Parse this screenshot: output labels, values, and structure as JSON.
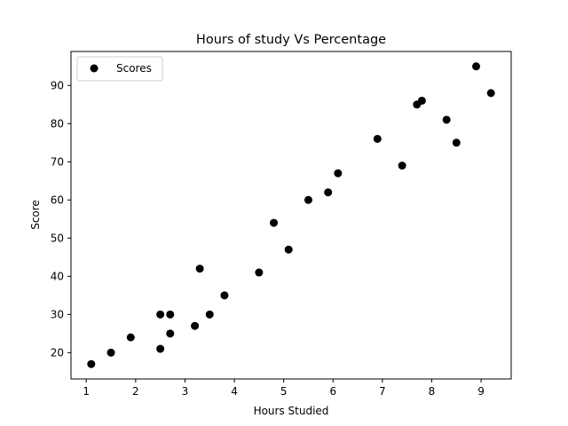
{
  "chart_data": {
    "type": "scatter",
    "title": "Hours of study Vs Percentage",
    "xlabel": "Hours Studied",
    "ylabel": "Score",
    "xlim": [
      0.69,
      9.61
    ],
    "ylim": [
      13.1,
      98.9
    ],
    "xticks": [
      1,
      2,
      3,
      4,
      5,
      6,
      7,
      8,
      9
    ],
    "yticks": [
      20,
      30,
      40,
      50,
      60,
      70,
      80,
      90
    ],
    "grid": false,
    "legend_position": "top-left",
    "marker_color": "#000000",
    "series": [
      {
        "name": "Scores",
        "x": [
          2.5,
          5.1,
          3.2,
          8.5,
          3.5,
          1.5,
          9.2,
          5.5,
          8.3,
          2.7,
          7.7,
          5.9,
          4.5,
          3.3,
          1.1,
          8.9,
          2.5,
          1.9,
          6.1,
          7.4,
          2.7,
          4.8,
          3.8,
          6.9,
          7.8
        ],
        "y": [
          21,
          47,
          27,
          75,
          30,
          20,
          88,
          60,
          81,
          25,
          85,
          62,
          41,
          42,
          17,
          95,
          30,
          24,
          67,
          69,
          30,
          54,
          35,
          76,
          86
        ]
      }
    ]
  }
}
